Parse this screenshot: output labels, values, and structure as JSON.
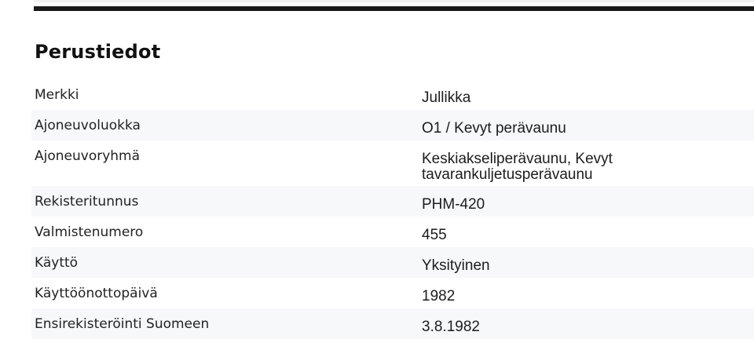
{
  "page": {
    "title": "Perustiedot"
  },
  "colors": {
    "top_bar": "#1a1a1a",
    "row_stripe": "#f7f8fa",
    "text": "#1c1c1c"
  },
  "table": {
    "rows": [
      {
        "label": "Merkki",
        "value": "Jullikka"
      },
      {
        "label": "Ajoneuvoluokka",
        "value": "O1 / Kevyt perävaunu"
      },
      {
        "label": "Ajoneuvoryhmä",
        "value": "Keskiakseliperävaunu, Kevyt tavarankuljetusperävaunu"
      },
      {
        "label": "Rekisteritunnus",
        "value": "PHM-420"
      },
      {
        "label": "Valmistenumero",
        "value": "455"
      },
      {
        "label": "Käyttö",
        "value": "Yksityinen"
      },
      {
        "label": "Käyttöönottopäivä",
        "value": "1982"
      },
      {
        "label": "Ensirekisteröinti Suomeen",
        "value": "3.8.1982"
      }
    ]
  }
}
